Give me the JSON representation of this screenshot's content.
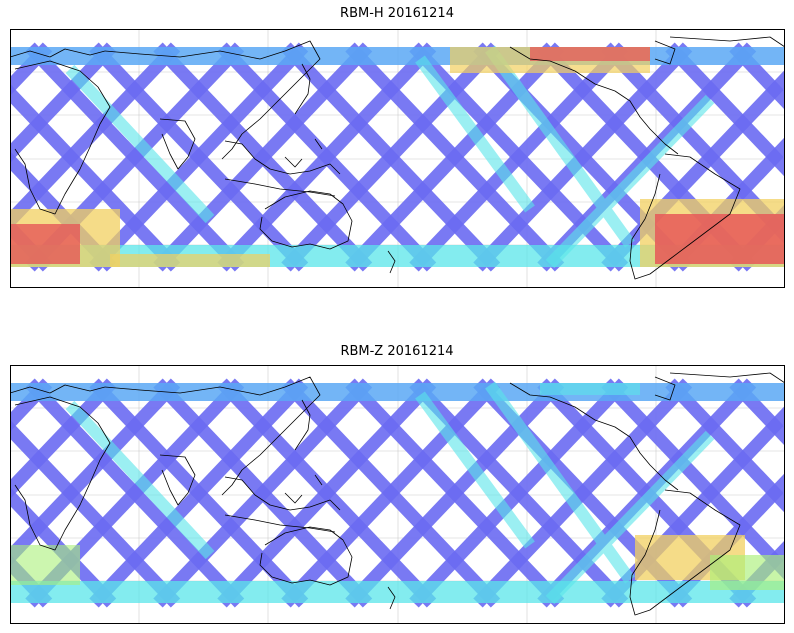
{
  "maps": [
    {
      "title": "RBM-H 20161214",
      "hot": "strong"
    },
    {
      "title": "RBM-Z 20161214",
      "hot": "weak"
    }
  ],
  "colors": {
    "track_low": "#6a6af2",
    "track_mid_low": "#5aa8f5",
    "track_mid": "#5ae6ea",
    "track_mid_high": "#aaf07a",
    "track_high": "#f2d060",
    "track_max": "#e65858",
    "coast": "#000000",
    "grid": "#cccccc"
  }
}
